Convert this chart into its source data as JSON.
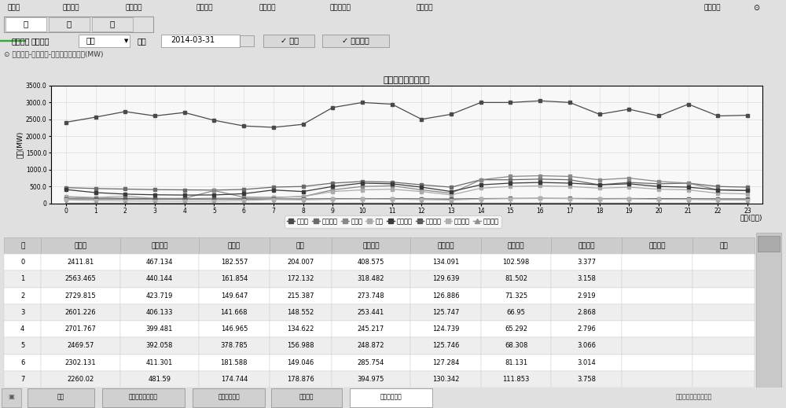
{
  "title_main": "日用电负荷趋势分析",
  "xlabel": "时间(小时)",
  "ylabel": "负荷(MW)",
  "hours": [
    0,
    1,
    2,
    3,
    4,
    5,
    6,
    7,
    8,
    9,
    10,
    11,
    12,
    13,
    14,
    15,
    16,
    17,
    18,
    19,
    20,
    21,
    22,
    23
  ],
  "series": {
    "大工业": [
      2411.81,
      2563.465,
      2729.815,
      2601.226,
      2701.767,
      2469.57,
      2302.131,
      2260.02,
      2350.0,
      2850.0,
      3000.0,
      2950.0,
      2500.0,
      2650.0,
      3000.0,
      3000.0,
      3050.0,
      3000.0,
      2650.0,
      2800.0,
      2600.0,
      2950.0,
      2600.0,
      2620.0
    ],
    "普通工业": [
      467.134,
      440.144,
      423.719,
      406.133,
      399.481,
      392.058,
      411.301,
      481.59,
      500.0,
      600.0,
      650.0,
      630.0,
      550.0,
      480.0,
      700.0,
      700.0,
      720.0,
      700.0,
      550.0,
      620.0,
      580.0,
      600.0,
      500.0,
      480.0
    ],
    "丰工业": [
      182.557,
      161.854,
      149.647,
      141.668,
      146.965,
      378.785,
      181.588,
      174.744,
      200.0,
      400.0,
      500.0,
      520.0,
      400.0,
      300.0,
      700.0,
      800.0,
      820.0,
      800.0,
      700.0,
      750.0,
      650.0,
      600.0,
      400.0,
      380.0
    ],
    "商业": [
      204.007,
      172.132,
      215.387,
      148.552,
      134.622,
      156.988,
      149.046,
      178.876,
      200.0,
      350.0,
      400.0,
      420.0,
      350.0,
      250.0,
      450.0,
      500.0,
      520.0,
      500.0,
      450.0,
      480.0,
      420.0,
      400.0,
      300.0,
      280.0
    ],
    "居民照明": [
      408.575,
      318.482,
      273.748,
      253.441,
      245.217,
      248.872,
      285.754,
      394.975,
      350.0,
      500.0,
      600.0,
      580.0,
      480.0,
      350.0,
      550.0,
      600.0,
      620.0,
      600.0,
      550.0,
      580.0,
      500.0,
      480.0,
      400.0,
      380.0
    ],
    "农业用电": [
      134.091,
      129.639,
      126.886,
      125.747,
      124.739,
      125.746,
      127.284,
      130.342,
      130.0,
      135.0,
      140.0,
      138.0,
      132.0,
      128.0,
      140.0,
      145.0,
      148.0,
      145.0,
      140.0,
      142.0,
      138.0,
      135.0,
      132.0,
      130.0
    ],
    "农村照明": [
      102.598,
      81.502,
      71.325,
      66.95,
      65.292,
      68.308,
      81.131,
      111.853,
      100.0,
      120.0,
      130.0,
      125.0,
      110.0,
      95.0,
      130.0,
      140.0,
      145.0,
      140.0,
      130.0,
      135.0,
      120.0,
      115.0,
      100.0,
      95.0
    ],
    "稻田排拉": [
      3.377,
      3.158,
      2.919,
      2.868,
      2.796,
      3.066,
      3.014,
      3.758,
      3.5,
      4.0,
      4.5,
      4.2,
      3.8,
      3.5,
      4.5,
      5.0,
      5.2,
      5.0,
      4.5,
      4.8,
      4.2,
      4.0,
      3.5,
      3.3
    ]
  },
  "series_colors": {
    "大工业": "#4a4a4a",
    "普通工业": "#6a6a6a",
    "丰工业": "#888888",
    "商业": "#aaaaaa",
    "居民照明": "#3a3a3a",
    "农业用电": "#5a5a5a",
    "农村照明": "#b0b0b0",
    "稻田排拉": "#909090"
  },
  "legend_items": [
    "大工业",
    "普通工业",
    "丰工业",
    "商业",
    "居民照明",
    "农业用电",
    "农村照明",
    "稻田排拉"
  ],
  "ylim": [
    0,
    3500
  ],
  "ytick_labels": [
    "0",
    "500.0",
    "1000.0",
    "1500.0",
    "2000.0",
    "2500.0",
    "3000.0",
    "3500.0"
  ],
  "ytick_values": [
    0,
    500,
    1000,
    1500,
    2000,
    2500,
    3000,
    3500
  ],
  "table_headers": [
    "时",
    "大工业",
    "普通工业",
    "丰工业",
    "商业",
    "居民照明",
    "农业用电",
    "农村照明",
    "稻田排拉",
    "溪田用电",
    "其它"
  ],
  "table_data": [
    [
      "0",
      "2411.81",
      "467.134",
      "182.557",
      "204.007",
      "408.575",
      "134.091",
      "102.598",
      "3.377",
      "",
      ""
    ],
    [
      "1",
      "2563.465",
      "440.144",
      "161.854",
      "172.132",
      "318.482",
      "129.639",
      "81.502",
      "3.158",
      "",
      ""
    ],
    [
      "2",
      "2729.815",
      "423.719",
      "149.647",
      "215.387",
      "273.748",
      "126.886",
      "71.325",
      "2.919",
      "",
      ""
    ],
    [
      "3",
      "2601.226",
      "406.133",
      "141.668",
      "148.552",
      "253.441",
      "125.747",
      "66.95",
      "2.868",
      "",
      ""
    ],
    [
      "4",
      "2701.767",
      "399.481",
      "146.965",
      "134.622",
      "245.217",
      "124.739",
      "65.292",
      "2.796",
      "",
      ""
    ],
    [
      "5",
      "2469.57",
      "392.058",
      "378.785",
      "156.988",
      "248.872",
      "125.746",
      "68.308",
      "3.066",
      "",
      ""
    ],
    [
      "6",
      "2302.131",
      "411.301",
      "181.588",
      "149.046",
      "285.754",
      "127.284",
      "81.131",
      "3.014",
      "",
      ""
    ],
    [
      "7",
      "2260.02",
      "481.59",
      "174.744",
      "178.876",
      "394.975",
      "130.342",
      "111.853",
      "3.758",
      "",
      ""
    ]
  ],
  "bg_color": "#e0e0e0",
  "chart_bg_color": "#f8f8f8",
  "menu_bg": "#b8b8b8",
  "menu_items": [
    "主菜单",
    "购电功能",
    "输电功能",
    "配电功能",
    "用电功能",
    "负荷率分析",
    "系统维护"
  ],
  "menu_x": [
    0.01,
    0.08,
    0.16,
    0.25,
    0.33,
    0.42,
    0.53
  ],
  "tab_items": [
    "日",
    "月",
    "年"
  ],
  "unit_label": "供电单位",
  "unit_value": "峦山",
  "time_label": "时间",
  "time_value": "2014-03-31",
  "btn_query": "查询",
  "btn_algo": "算法说明",
  "query_cond_label": "查询条件",
  "breadcrumb": "用电功能-负荷分析-用电类别负荷分析(MW)",
  "bottom_tabs": [
    "首页",
    "电市行业分类分析",
    "电市对比分析",
    "负荷主页",
    "负荷分析评组"
  ],
  "status_right": "欢迎卡尔年系统运行中",
  "col_widths_rel": [
    0.045,
    0.095,
    0.095,
    0.085,
    0.075,
    0.095,
    0.085,
    0.085,
    0.085,
    0.085,
    0.075
  ]
}
